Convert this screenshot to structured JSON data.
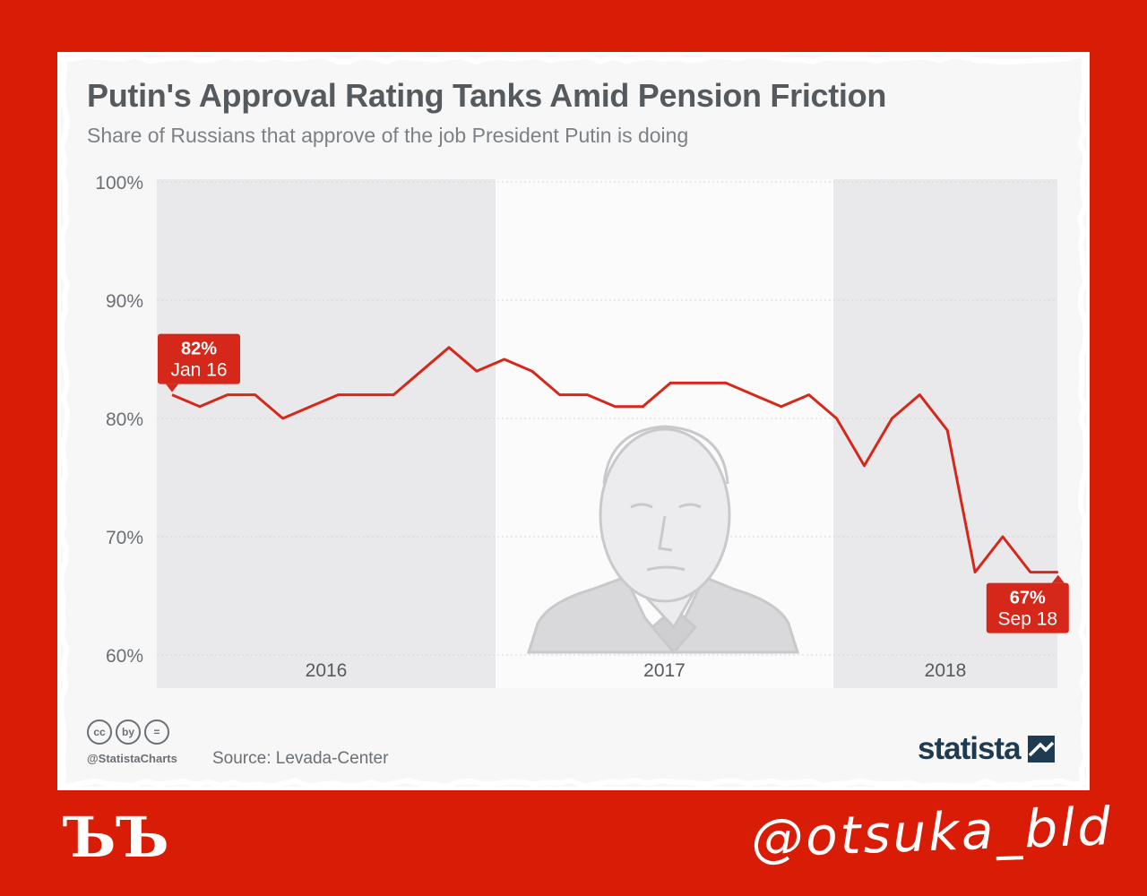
{
  "title": "Putin's Approval Rating Tanks Amid Pension Friction",
  "subtitle": "Share of Russians that approve of the job President Putin is doing",
  "footer": {
    "cc_icons": [
      "cc",
      "by",
      "="
    ],
    "handle": "@StatistaCharts",
    "source": "Source: Levada-Center",
    "brand": "statista"
  },
  "watermark": {
    "corner_mark": "ЪЪ",
    "signature": "@otsuka_bld"
  },
  "colors": {
    "background": "#d91c06",
    "line": "#d6281a",
    "shade": "#e9e9eb",
    "brand": "#1e3b52"
  },
  "chart_data": {
    "type": "line",
    "ylim": [
      60,
      100
    ],
    "y_ticks": [
      "100%",
      "90%",
      "80%",
      "70%",
      "60%"
    ],
    "y_tick_values": [
      100,
      90,
      80,
      70,
      60
    ],
    "years": [
      "2016",
      "2017",
      "2018"
    ],
    "x": [
      "Jan 16",
      "Feb 16",
      "Mar 16",
      "Apr 16",
      "May 16",
      "Jun 16",
      "Jul 16",
      "Aug 16",
      "Sep 16",
      "Oct 16",
      "Nov 16",
      "Dec 16",
      "Jan 17",
      "Feb 17",
      "Mar 17",
      "Apr 17",
      "May 17",
      "Jun 17",
      "Jul 17",
      "Aug 17",
      "Sep 17",
      "Oct 17",
      "Nov 17",
      "Dec 17",
      "Jan 18",
      "Feb 18",
      "Mar 18",
      "Apr 18",
      "May 18",
      "Jun 18",
      "Jul 18",
      "Aug 18",
      "Sep 18"
    ],
    "values": [
      82,
      81,
      82,
      82,
      80,
      81,
      82,
      82,
      82,
      84,
      86,
      84,
      85,
      84,
      82,
      82,
      81,
      81,
      83,
      83,
      83,
      82,
      81,
      82,
      80,
      76,
      80,
      82,
      79,
      67,
      70,
      67,
      67
    ],
    "annotations": [
      {
        "value": "82%",
        "label": "Jan 16"
      },
      {
        "value": "67%",
        "label": "Sep 18"
      }
    ]
  }
}
